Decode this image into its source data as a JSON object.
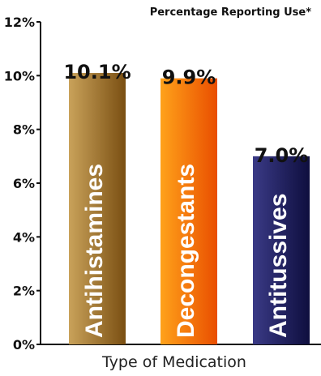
{
  "chart_data": {
    "type": "bar",
    "title": "Percentage Reporting Use*",
    "xlabel": "Type of Medication",
    "ylabel": "",
    "categories": [
      "Antihistamines",
      "Decongestants",
      "Antitussives"
    ],
    "values": [
      10.1,
      9.9,
      7.0
    ],
    "value_labels": [
      "10.1%",
      "9.9%",
      "7.0%"
    ],
    "ylim": [
      0,
      12
    ],
    "yticks": [
      0,
      2,
      4,
      6,
      8,
      10,
      12
    ],
    "ytick_labels": [
      "0%",
      "2%",
      "4%",
      "6%",
      "8%",
      "10%",
      "12%"
    ],
    "grid": false,
    "legend": "none",
    "bar_colors": [
      {
        "light": "#c9a25a",
        "dark": "#7a4f12"
      },
      {
        "light": "#ffa21a",
        "dark": "#e94e00"
      },
      {
        "light": "#3a3a86",
        "dark": "#0e0e3e"
      }
    ]
  }
}
